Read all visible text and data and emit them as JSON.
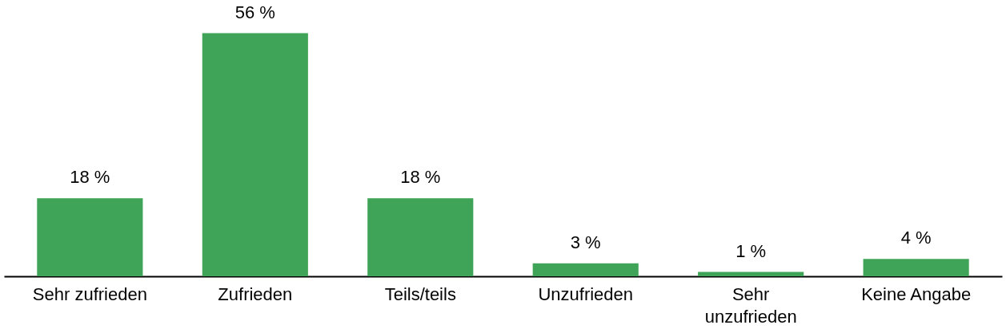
{
  "chart_data": {
    "type": "bar",
    "categories": [
      "Sehr zufrieden",
      "Zufrieden",
      "Teils/teils",
      "Unzufrieden",
      "Sehr unzufrieden",
      "Keine Angabe"
    ],
    "values": [
      18,
      56,
      18,
      3,
      1,
      4
    ],
    "value_labels": [
      "18 %",
      "56 %",
      "18 %",
      "3 %",
      "1 %",
      "4 %"
    ],
    "color": "#3fa457"
  }
}
